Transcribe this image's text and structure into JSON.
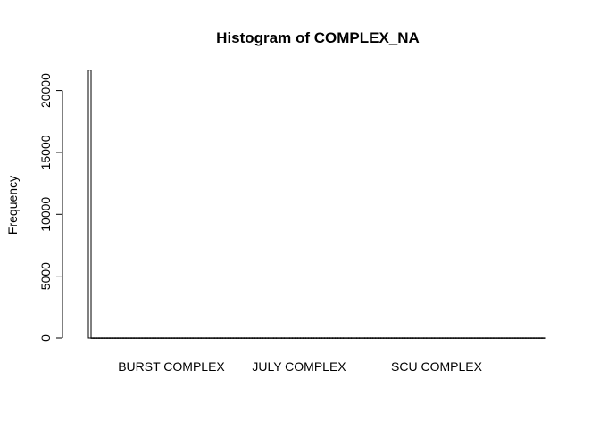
{
  "chart_data": {
    "type": "bar",
    "title": "Histogram of COMPLEX_NA",
    "xlabel": "",
    "ylabel": "Frequency",
    "ylim": [
      0,
      21700
    ],
    "yticks": [
      0,
      5000,
      10000,
      15000,
      20000
    ],
    "yticklabels": [
      "0",
      "5000",
      "10000",
      "15000",
      "20000"
    ],
    "xticklabels": [
      "BURST COMPLEX",
      "JULY COMPLEX",
      "SCU COMPLEX"
    ],
    "values": [
      21650,
      10,
      10,
      10,
      10,
      10,
      10,
      10,
      10,
      10,
      10,
      10,
      10,
      10,
      10,
      10,
      10,
      10,
      10,
      10,
      10,
      10,
      10,
      10,
      10,
      10,
      10,
      10,
      10,
      10,
      10,
      10,
      10,
      10,
      10,
      10,
      10,
      10,
      10,
      10,
      10,
      10,
      10,
      10,
      10,
      10,
      10,
      10,
      10,
      10,
      10,
      10,
      10,
      10,
      10,
      10,
      10,
      10,
      10,
      10,
      10,
      10,
      10,
      10,
      10,
      10,
      10,
      10,
      10,
      10,
      10,
      10,
      10,
      10,
      10,
      10,
      10,
      10,
      10,
      10,
      10,
      10,
      10,
      10,
      10,
      10,
      10,
      10,
      10,
      10,
      10,
      10,
      10,
      10,
      10,
      10,
      10,
      10,
      10,
      10,
      10,
      10,
      10,
      10,
      10,
      10,
      10,
      10,
      10,
      10,
      10,
      10,
      10,
      10,
      10,
      10,
      10,
      10,
      10,
      10,
      10,
      10,
      10,
      10,
      10,
      10,
      10,
      10,
      10,
      10,
      10,
      10,
      10,
      10,
      10,
      10,
      10,
      10,
      10,
      10,
      10,
      10,
      10,
      10,
      10,
      10,
      10,
      10,
      10,
      10,
      10,
      10,
      10,
      10,
      10,
      10,
      10,
      10,
      10,
      10,
      10,
      10,
      10,
      10,
      10,
      10,
      10,
      10,
      10,
      10
    ],
    "grid": false,
    "legend": "none"
  }
}
